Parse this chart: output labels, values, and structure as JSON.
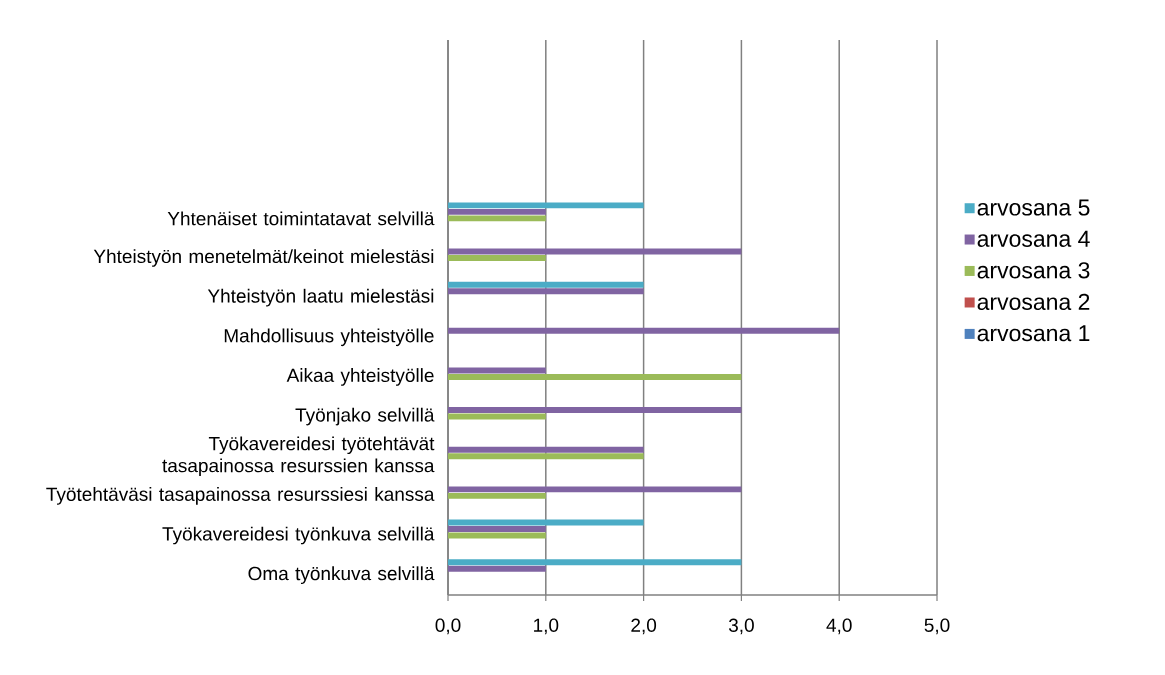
{
  "chart_data": {
    "type": "bar",
    "orientation": "horizontal",
    "categories": [
      null,
      null,
      null,
      null,
      "Yhtenäiset toimintatavat selvillä",
      "Yhteistyön menetelmät/keinot mielestäsi",
      "Yhteistyön laatu mielestäsi",
      "Mahdollisuus yhteistyölle",
      "Aikaa yhteistyölle",
      "Työnjako selvillä",
      "Työkavereidesi työtehtävät tasapainossa resurssien kanssa",
      "Työtehtäväsi tasapainossa resurssiesi kanssa",
      "Työkavereidesi työnkuva selvillä",
      "Oma työnkuva selvillä"
    ],
    "series": [
      {
        "name": "arvosana 1",
        "color": "#4f81bd",
        "values": [
          null,
          null,
          null,
          null,
          0,
          0,
          0,
          0,
          0,
          0,
          0,
          0,
          0,
          0
        ]
      },
      {
        "name": "arvosana 2",
        "color": "#c0504d",
        "values": [
          null,
          null,
          null,
          null,
          0,
          0,
          0,
          0,
          0,
          0,
          0,
          0,
          0,
          0
        ]
      },
      {
        "name": "arvosana 3",
        "color": "#9bbb59",
        "values": [
          null,
          null,
          null,
          null,
          1,
          1,
          0,
          0,
          3,
          1,
          2,
          1,
          1,
          0
        ]
      },
      {
        "name": "arvosana 4",
        "color": "#8064a2",
        "values": [
          null,
          null,
          null,
          null,
          1,
          3,
          2,
          4,
          1,
          3,
          2,
          3,
          1,
          1
        ]
      },
      {
        "name": "arvosana 5",
        "color": "#4bacc6",
        "values": [
          null,
          null,
          null,
          null,
          2,
          0,
          2,
          0,
          0,
          0,
          0,
          0,
          2,
          3
        ]
      }
    ],
    "xlim": [
      0,
      5
    ],
    "xticks": [
      {
        "value": 0,
        "label": "0,0"
      },
      {
        "value": 1,
        "label": "1,0"
      },
      {
        "value": 2,
        "label": "2,0"
      },
      {
        "value": 3,
        "label": "3,0"
      },
      {
        "value": 4,
        "label": "4,0"
      },
      {
        "value": 5,
        "label": "5,0"
      }
    ],
    "grid": "x",
    "legend": "right"
  }
}
